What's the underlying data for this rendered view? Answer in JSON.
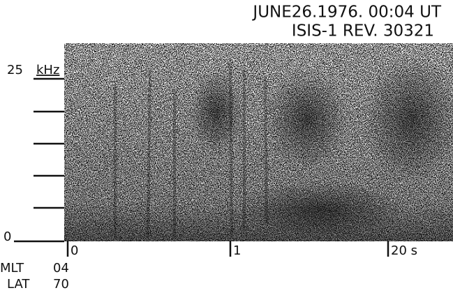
{
  "header": {
    "date_line": "JUNE26.1976. 00:04 UT",
    "satellite_line": "ISIS-1  REV. 30321"
  },
  "axes": {
    "top_freq": "25",
    "freq_unit": "kHz",
    "bottom_freq": "0",
    "time_labels": [
      "0",
      "1",
      "20 s"
    ]
  },
  "footer": {
    "rows": [
      [
        "MLT",
        "04"
      ],
      [
        "LAT",
        "70"
      ]
    ]
  }
}
